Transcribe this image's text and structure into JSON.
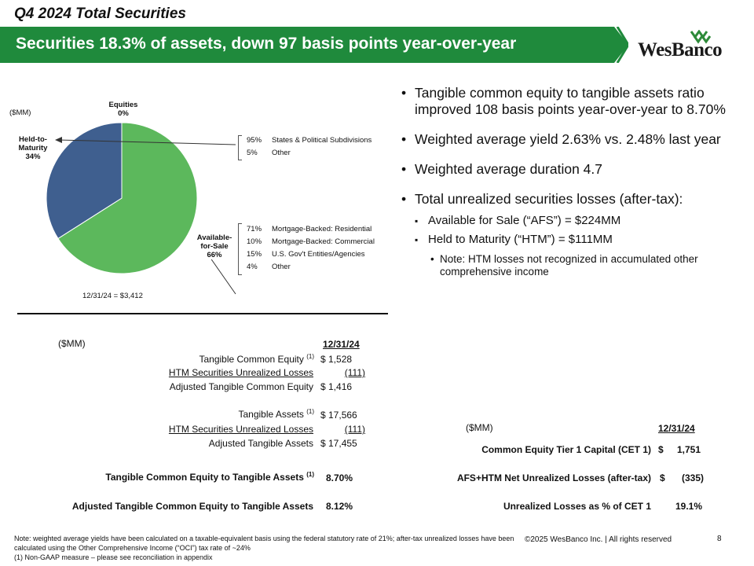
{
  "header": {
    "slide_title": "Q4 2024 Total Securities",
    "banner_text": "Securities 18.3% of assets, down 97 basis points year-over-year",
    "logo_text": "WesBanco"
  },
  "pie": {
    "unit_label": "($MM)",
    "total_label": "12/31/24 = $3,412",
    "labels": {
      "equities_name": "Equities",
      "equities_pct": "0%",
      "htm_name_1": "Held-to-",
      "htm_name_2": "Maturity",
      "htm_pct": "34%",
      "afs_name_1": "Available-",
      "afs_name_2": "for-Sale",
      "afs_pct": "66%"
    },
    "htm_breakdown": [
      {
        "pct": "95%",
        "label": "States & Political Subdivisions"
      },
      {
        "pct": "5%",
        "label": "Other"
      }
    ],
    "afs_breakdown": [
      {
        "pct": "71%",
        "label": "Mortgage-Backed: Residential"
      },
      {
        "pct": "10%",
        "label": "Mortgage-Backed: Commercial"
      },
      {
        "pct": "15%",
        "label": "U.S. Gov't Entities/Agencies"
      },
      {
        "pct": "4%",
        "label": "Other"
      }
    ],
    "colors": {
      "afs": "#5cb85c",
      "htm": "#3f5f8f",
      "equities": "#b0b0b0"
    }
  },
  "chart_data": {
    "type": "pie",
    "categories": [
      "Available-for-Sale",
      "Held-to-Maturity",
      "Equities"
    ],
    "values": [
      66,
      34,
      0
    ],
    "total_label": "12/31/24 = $3,412"
  },
  "bullets": {
    "b1": "Tangible common equity to tangible assets ratio improved 108 basis points year-over-year to 8.70%",
    "b2": "Weighted average yield 2.63% vs. 2.48% last year",
    "b3": "Weighted average duration 4.7",
    "b4": "Total unrealized securities losses (after-tax):",
    "sub1": "Available for Sale (“AFS”) = $224MM",
    "sub2": "Held to Maturity (“HTM”) = $111MM",
    "note": "Note: HTM losses not recognized in accumulated other comprehensive income"
  },
  "left_table": {
    "unit": "($MM)",
    "date_header": "12/31/24",
    "rows": [
      {
        "label": "Tangible Common Equity",
        "sup": "(1)",
        "value": "$   1,528"
      },
      {
        "label": "HTM Securities Unrealized Losses",
        "value": "(111)"
      },
      {
        "label": "Adjusted Tangible Common Equity",
        "value": "$   1,416"
      },
      {
        "label": "Tangible Assets",
        "sup": "(1)",
        "value": "$ 17,566"
      },
      {
        "label": "HTM Securities Unrealized Losses",
        "value": "(111)"
      },
      {
        "label": "Adjusted Tangible Assets",
        "value": "$ 17,455"
      }
    ],
    "ratio1_label": "Tangible Common Equity to Tangible Assets",
    "ratio1_sup": "(1)",
    "ratio1_value": "8.70%",
    "ratio2_label": "Adjusted Tangible Common Equity to Tangible Assets",
    "ratio2_value": "8.12%"
  },
  "right_table": {
    "unit": "($MM)",
    "date_header": "12/31/24",
    "row1_label": "Common Equity Tier 1 Capital (CET 1)",
    "row1_dollar": "$",
    "row1_value": "1,751",
    "row2_label": "AFS+HTM Net Unrealized Losses (after-tax)",
    "row2_dollar": "$",
    "row2_value": "(335)",
    "row3_label": "Unrealized Losses as % of CET 1",
    "row3_value": "19.1%"
  },
  "footer": {
    "note_line1": "Note:  weighted average yields have been calculated on a taxable-equivalent basis using the federal statutory rate of 21%; after-tax unrealized losses have been calculated using the Other Comprehensive Income (“OCI”) tax rate of ~24%",
    "note_line2": "(1)    Non-GAAP measure – please see reconciliation in appendix",
    "copyright": "©2025 WesBanco Inc.  |  All rights reserved",
    "page_number": "8"
  }
}
